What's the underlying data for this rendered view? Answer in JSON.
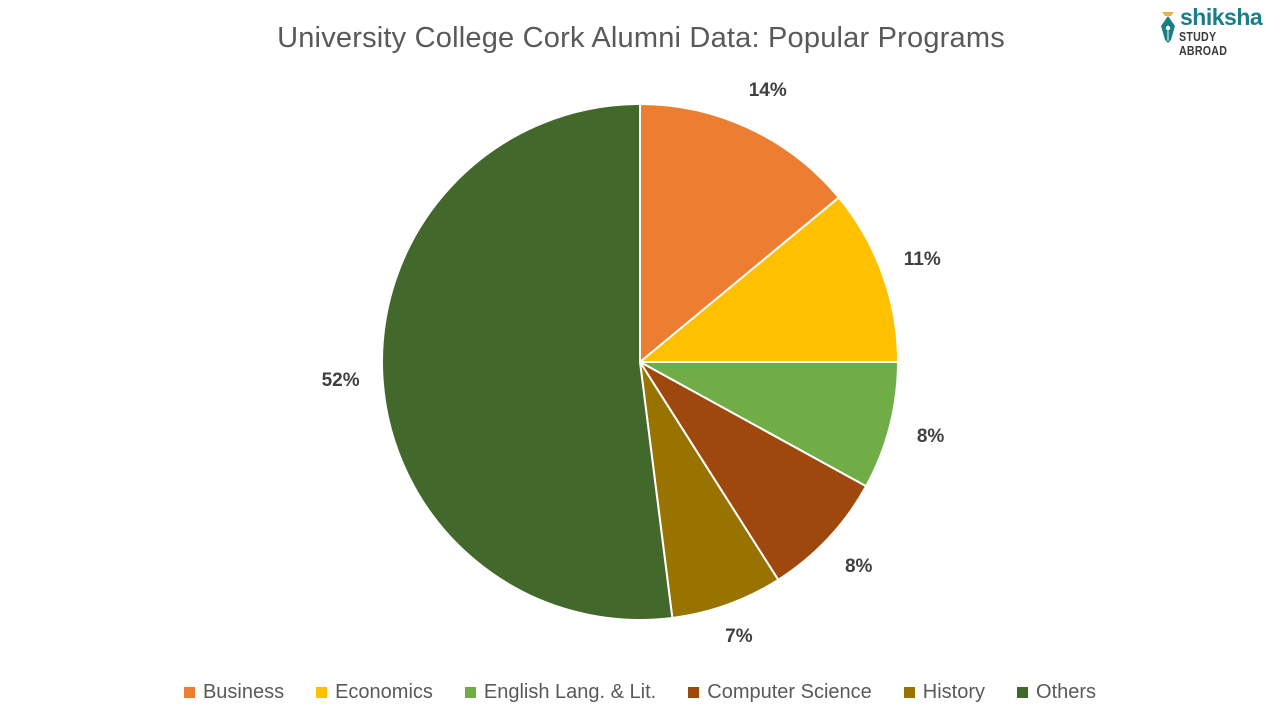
{
  "header": {
    "title": "University College Cork Alumni Data: Popular Programs",
    "logo": {
      "brand": "shiksha",
      "sub": "STUDY ABROAD",
      "color": "#1a7f86"
    }
  },
  "chart_data": {
    "type": "pie",
    "title": "University College Cork Alumni Data: Popular Programs",
    "categories": [
      "Business",
      "Economics",
      "English Lang. & Lit.",
      "Computer Science",
      "History",
      "Others"
    ],
    "values": [
      14,
      11,
      8,
      8,
      7,
      52
    ],
    "labels": [
      "14%",
      "11%",
      "8%",
      "8%",
      "7%",
      "52%"
    ],
    "colors": [
      "#ed7d31",
      "#ffc000",
      "#70ad47",
      "#9e480e",
      "#997300",
      "#43682b"
    ],
    "start_angle": "12 o'clock, clockwise",
    "legend_position": "bottom"
  },
  "legend": {
    "items": [
      {
        "label": "Business",
        "color": "#ed7d31"
      },
      {
        "label": "Economics",
        "color": "#ffc000"
      },
      {
        "label": "English Lang. & Lit.",
        "color": "#70ad47"
      },
      {
        "label": "Computer Science",
        "color": "#9e480e"
      },
      {
        "label": "History",
        "color": "#997300"
      },
      {
        "label": "Others",
        "color": "#43682b"
      }
    ]
  }
}
